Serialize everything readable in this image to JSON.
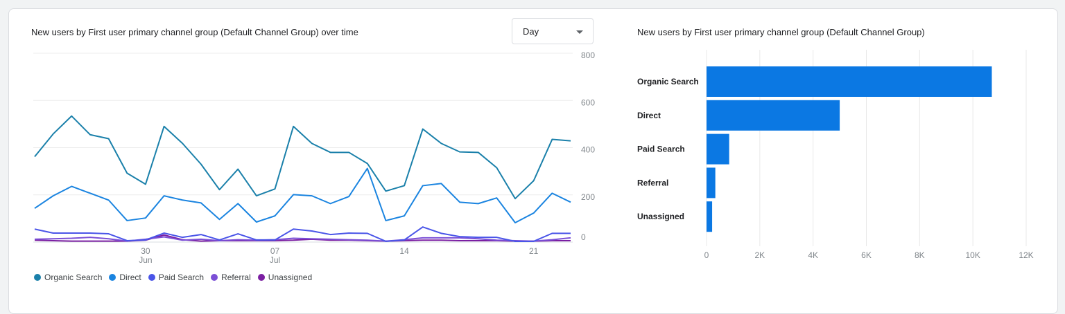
{
  "chart_data": [
    {
      "type": "line",
      "title": "New users by First user primary channel group (Default Channel Group) over time",
      "granularity_select": {
        "selected": "Day"
      },
      "x_dates": [
        "24 Jun",
        "25 Jun",
        "26 Jun",
        "27 Jun",
        "28 Jun",
        "29 Jun",
        "30 Jun",
        "01 Jul",
        "02 Jul",
        "03 Jul",
        "04 Jul",
        "05 Jul",
        "06 Jul",
        "07 Jul",
        "08 Jul",
        "09 Jul",
        "10 Jul",
        "11 Jul",
        "12 Jul",
        "13 Jul",
        "14 Jul",
        "15 Jul",
        "16 Jul",
        "17 Jul",
        "18 Jul",
        "19 Jul",
        "20 Jul",
        "21 Jul",
        "22 Jul",
        "23 Jul"
      ],
      "x_ticks": [
        {
          "index": 6,
          "label": "30",
          "sub": "Jun"
        },
        {
          "index": 13,
          "label": "07",
          "sub": "Jul"
        },
        {
          "index": 20,
          "label": "14",
          "sub": ""
        },
        {
          "index": 27,
          "label": "21",
          "sub": ""
        }
      ],
      "y_ticks": [
        "800",
        "600",
        "400",
        "200",
        "0"
      ],
      "ylim": [
        0,
        800
      ],
      "grid": true,
      "legend_position": "bottom-left",
      "series": [
        {
          "name": "Organic Search",
          "color": "#1a80aa",
          "values": [
            362,
            458,
            534,
            455,
            438,
            292,
            245,
            490,
            418,
            330,
            222,
            309,
            196,
            225,
            490,
            418,
            380,
            380,
            333,
            216,
            239,
            479,
            418,
            382,
            380,
            315,
            184,
            260,
            435,
            429
          ]
        },
        {
          "name": "Direct",
          "color": "#1a84e0",
          "values": [
            143,
            196,
            236,
            207,
            178,
            91,
            102,
            196,
            178,
            166,
            96,
            163,
            85,
            111,
            201,
            196,
            163,
            193,
            312,
            91,
            111,
            239,
            248,
            169,
            163,
            187,
            82,
            123,
            207,
            169
          ]
        },
        {
          "name": "Paid Search",
          "color": "#4a55e8",
          "values": [
            55,
            38,
            38,
            38,
            35,
            6,
            9,
            38,
            20,
            32,
            9,
            35,
            9,
            9,
            55,
            47,
            32,
            38,
            37,
            3,
            9,
            64,
            37,
            23,
            20,
            20,
            3,
            3,
            37,
            37
          ]
        },
        {
          "name": "Referral",
          "color": "#7b4fd6",
          "values": [
            12,
            14,
            16,
            20,
            14,
            4,
            12,
            22,
            8,
            12,
            6,
            10,
            8,
            10,
            16,
            14,
            12,
            10,
            8,
            4,
            10,
            18,
            18,
            18,
            14,
            8,
            6,
            4,
            10,
            18
          ]
        },
        {
          "name": "Unassigned",
          "color": "#7b1fa2",
          "values": [
            8,
            6,
            4,
            4,
            4,
            4,
            8,
            30,
            10,
            4,
            6,
            6,
            6,
            6,
            8,
            12,
            8,
            8,
            6,
            4,
            6,
            8,
            8,
            6,
            6,
            6,
            4,
            4,
            6,
            6
          ]
        }
      ]
    },
    {
      "type": "bar",
      "orientation": "horizontal",
      "title": "New users by First user primary channel group (Default Channel Group)",
      "categories": [
        "Organic Search",
        "Direct",
        "Paid Search",
        "Referral",
        "Unassigned"
      ],
      "values": [
        10710,
        5000,
        850,
        330,
        210
      ],
      "color": "#0b78e3",
      "x_ticks": [
        "0",
        "2K",
        "4K",
        "6K",
        "8K",
        "10K",
        "12K"
      ],
      "xlim": [
        0,
        12000
      ],
      "grid": true
    }
  ]
}
